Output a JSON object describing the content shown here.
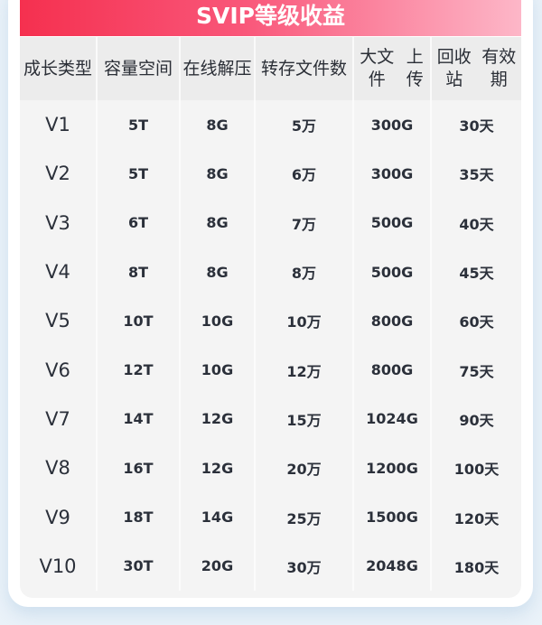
{
  "title": "SVIP等级收益",
  "headers": [
    [
      "成长",
      "类型"
    ],
    [
      "容量",
      "空间"
    ],
    [
      "在线",
      "解压"
    ],
    [
      "转存",
      "文件数"
    ],
    [
      "大文件",
      "上传"
    ],
    [
      "回收站",
      "有效期"
    ]
  ],
  "rows": [
    [
      "V1",
      "5T",
      "8G",
      "5万",
      "300G",
      "30天"
    ],
    [
      "V2",
      "5T",
      "8G",
      "6万",
      "300G",
      "35天"
    ],
    [
      "V3",
      "6T",
      "8G",
      "7万",
      "500G",
      "40天"
    ],
    [
      "V4",
      "8T",
      "8G",
      "8万",
      "500G",
      "45天"
    ],
    [
      "V5",
      "10T",
      "10G",
      "10万",
      "800G",
      "60天"
    ],
    [
      "V6",
      "12T",
      "10G",
      "12万",
      "800G",
      "75天"
    ],
    [
      "V7",
      "14T",
      "12G",
      "15万",
      "1024G",
      "90天"
    ],
    [
      "V8",
      "16T",
      "12G",
      "20万",
      "1200G",
      "100天"
    ],
    [
      "V9",
      "18T",
      "14G",
      "25万",
      "1500G",
      "120天"
    ],
    [
      "V10",
      "30T",
      "20G",
      "30万",
      "2048G",
      "180天"
    ]
  ],
  "colors": {
    "title_start": "#f5304f",
    "title_end": "#fdb7c8",
    "header_bg": "#ececec",
    "body_bg": "#f4f4f4"
  }
}
